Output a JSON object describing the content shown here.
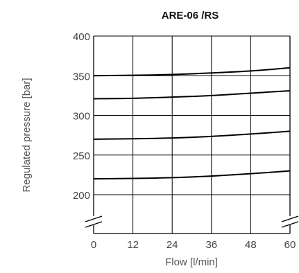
{
  "chart_data": {
    "type": "line",
    "title": "ARE-06 /RS",
    "xlabel": "Flow [l/min]",
    "ylabel": "Regulated pressure [bar]",
    "xlim": [
      0,
      60
    ],
    "ylim": [
      200,
      400
    ],
    "x_axis_break_at_bottom": true,
    "xticks": [
      0,
      12,
      24,
      36,
      48,
      60
    ],
    "xtick_labels": [
      "0",
      "12",
      "24",
      "36",
      "48",
      "60"
    ],
    "yticks": [
      200,
      250,
      300,
      350,
      400
    ],
    "ytick_labels": [
      "200",
      "250",
      "300",
      "350",
      "400"
    ],
    "grid": true,
    "colors": {
      "line": "#000000",
      "grid": "#000000",
      "background": "#ffffff",
      "text": "#444444"
    },
    "series": [
      {
        "x": [
          0,
          12,
          24,
          36,
          48,
          60
        ],
        "values": [
          350,
          350.5,
          351.5,
          353.5,
          356,
          360
        ]
      },
      {
        "x": [
          0,
          12,
          24,
          36,
          48,
          60
        ],
        "values": [
          321,
          321.5,
          323,
          325,
          328,
          331
        ]
      },
      {
        "x": [
          0,
          12,
          24,
          36,
          48,
          60
        ],
        "values": [
          270,
          270.5,
          271.5,
          273.5,
          276.5,
          280
        ]
      },
      {
        "x": [
          0,
          12,
          24,
          36,
          48,
          60
        ],
        "values": [
          220,
          220.5,
          221.5,
          223.5,
          226.5,
          230
        ]
      }
    ]
  }
}
